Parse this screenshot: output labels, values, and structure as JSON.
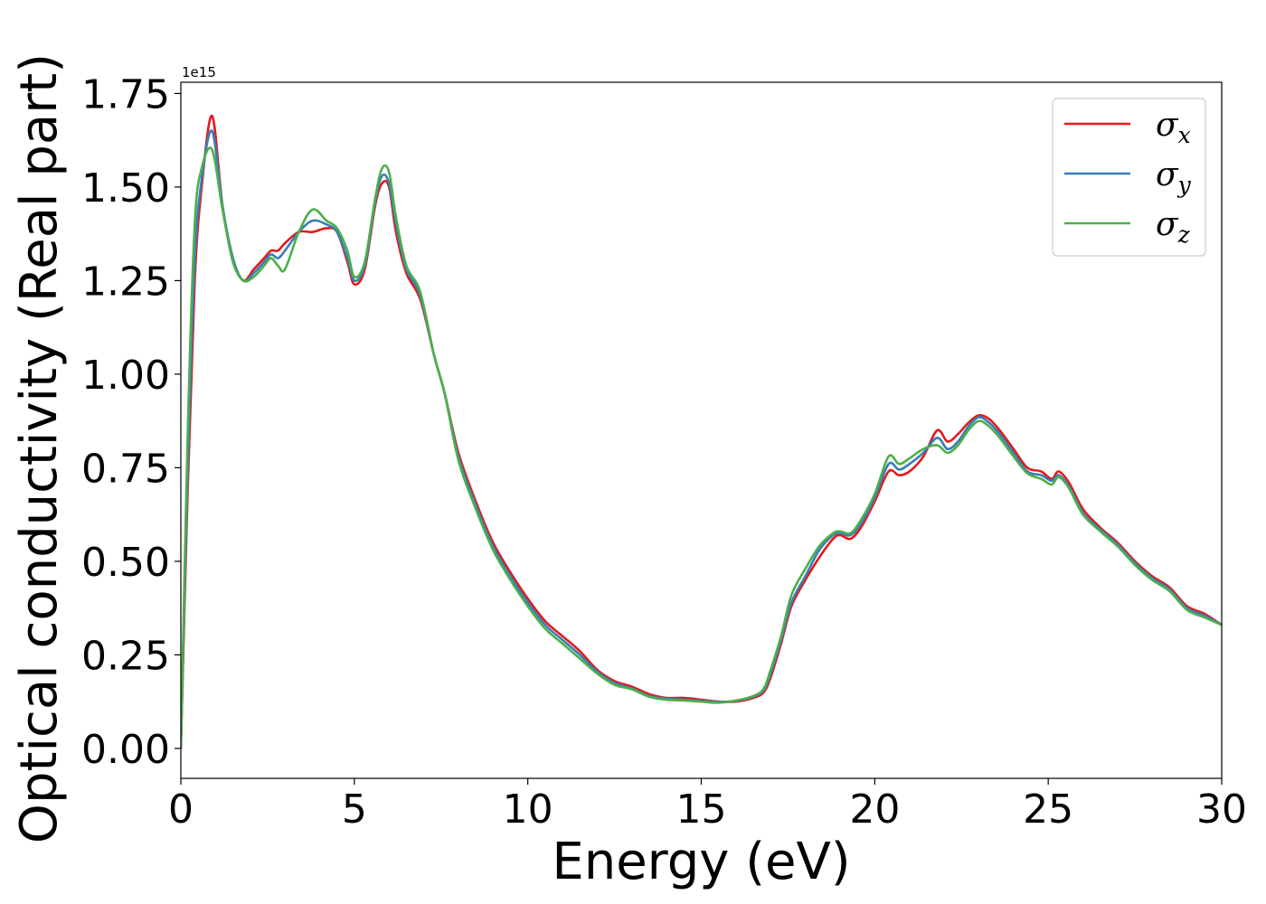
{
  "chart_data": {
    "type": "line",
    "xlabel": "Energy (eV)",
    "ylabel": "Optical conductivity (Real part)",
    "y_offset_text": "1e15",
    "xlim": [
      0,
      30
    ],
    "ylim": [
      -0.08,
      1.78
    ],
    "x_ticks": [
      0,
      5,
      10,
      15,
      20,
      25,
      30
    ],
    "x_tick_labels": [
      "0",
      "5",
      "10",
      "15",
      "20",
      "25",
      "30"
    ],
    "y_ticks": [
      0.0,
      0.25,
      0.5,
      0.75,
      1.0,
      1.25,
      1.5,
      1.75
    ],
    "y_tick_labels": [
      "0.00",
      "0.25",
      "0.50",
      "0.75",
      "1.00",
      "1.25",
      "1.50",
      "1.75"
    ],
    "grid": false,
    "legend_position": "top-right",
    "x": [
      0,
      0.2,
      0.4,
      0.6,
      0.9,
      1.2,
      1.5,
      1.8,
      2.1,
      2.4,
      2.6,
      2.8,
      3.0,
      3.4,
      3.8,
      4.2,
      4.5,
      4.8,
      5.0,
      5.3,
      5.6,
      5.8,
      6.0,
      6.2,
      6.5,
      6.9,
      7.3,
      7.6,
      8.0,
      8.5,
      9.0,
      9.5,
      10.0,
      10.5,
      11.0,
      11.5,
      12.0,
      12.5,
      13.0,
      13.5,
      14.0,
      14.5,
      15.0,
      15.5,
      16.0,
      16.5,
      16.8,
      17.0,
      17.3,
      17.6,
      18.0,
      18.4,
      18.8,
      19.0,
      19.3,
      19.6,
      20.0,
      20.4,
      20.7,
      21.0,
      21.4,
      21.8,
      22.1,
      22.4,
      22.7,
      23.0,
      23.3,
      23.6,
      24.0,
      24.4,
      24.8,
      25.1,
      25.3,
      25.6,
      26.0,
      26.5,
      27.0,
      27.5,
      28.0,
      28.5,
      29.0,
      29.5,
      30.0
    ],
    "series": [
      {
        "name": "σ_x",
        "label_base": "σ",
        "label_sub": "x",
        "color": "#e41a1c",
        "values": [
          0.0,
          0.7,
          1.25,
          1.5,
          1.69,
          1.45,
          1.31,
          1.25,
          1.28,
          1.31,
          1.33,
          1.33,
          1.35,
          1.38,
          1.38,
          1.39,
          1.38,
          1.3,
          1.24,
          1.28,
          1.45,
          1.51,
          1.5,
          1.38,
          1.27,
          1.2,
          1.05,
          0.95,
          0.79,
          0.66,
          0.55,
          0.47,
          0.4,
          0.34,
          0.3,
          0.26,
          0.21,
          0.18,
          0.165,
          0.145,
          0.135,
          0.135,
          0.13,
          0.125,
          0.125,
          0.135,
          0.15,
          0.19,
          0.28,
          0.38,
          0.45,
          0.51,
          0.56,
          0.57,
          0.56,
          0.59,
          0.66,
          0.74,
          0.73,
          0.74,
          0.78,
          0.85,
          0.82,
          0.84,
          0.87,
          0.89,
          0.88,
          0.85,
          0.8,
          0.75,
          0.74,
          0.72,
          0.74,
          0.71,
          0.64,
          0.59,
          0.55,
          0.5,
          0.46,
          0.43,
          0.38,
          0.36,
          0.33
        ]
      },
      {
        "name": "σ_y",
        "label_base": "σ",
        "label_sub": "y",
        "color": "#377eb8",
        "values": [
          0.0,
          0.75,
          1.3,
          1.52,
          1.65,
          1.45,
          1.31,
          1.25,
          1.27,
          1.3,
          1.32,
          1.31,
          1.33,
          1.38,
          1.41,
          1.4,
          1.38,
          1.31,
          1.25,
          1.29,
          1.46,
          1.53,
          1.51,
          1.4,
          1.28,
          1.21,
          1.05,
          0.95,
          0.78,
          0.65,
          0.54,
          0.46,
          0.39,
          0.33,
          0.29,
          0.25,
          0.205,
          0.175,
          0.16,
          0.14,
          0.133,
          0.13,
          0.127,
          0.124,
          0.127,
          0.138,
          0.155,
          0.2,
          0.29,
          0.39,
          0.46,
          0.53,
          0.57,
          0.575,
          0.57,
          0.6,
          0.67,
          0.76,
          0.745,
          0.76,
          0.79,
          0.83,
          0.8,
          0.82,
          0.86,
          0.885,
          0.87,
          0.84,
          0.79,
          0.74,
          0.73,
          0.715,
          0.73,
          0.7,
          0.63,
          0.585,
          0.545,
          0.495,
          0.455,
          0.425,
          0.375,
          0.355,
          0.33
        ]
      },
      {
        "name": "σ_z",
        "label_base": "σ",
        "label_sub": "z",
        "color": "#4daf4a",
        "values": [
          0.0,
          0.85,
          1.4,
          1.55,
          1.6,
          1.44,
          1.3,
          1.25,
          1.26,
          1.29,
          1.31,
          1.29,
          1.28,
          1.38,
          1.44,
          1.41,
          1.39,
          1.33,
          1.26,
          1.3,
          1.47,
          1.55,
          1.54,
          1.42,
          1.29,
          1.22,
          1.05,
          0.95,
          0.77,
          0.64,
          0.53,
          0.45,
          0.38,
          0.32,
          0.28,
          0.24,
          0.2,
          0.17,
          0.158,
          0.138,
          0.13,
          0.128,
          0.125,
          0.122,
          0.128,
          0.14,
          0.16,
          0.21,
          0.3,
          0.41,
          0.48,
          0.54,
          0.575,
          0.58,
          0.575,
          0.61,
          0.68,
          0.78,
          0.76,
          0.775,
          0.8,
          0.81,
          0.79,
          0.81,
          0.85,
          0.875,
          0.86,
          0.83,
          0.78,
          0.735,
          0.72,
          0.705,
          0.725,
          0.695,
          0.625,
          0.58,
          0.54,
          0.49,
          0.45,
          0.42,
          0.37,
          0.35,
          0.33
        ]
      }
    ]
  }
}
